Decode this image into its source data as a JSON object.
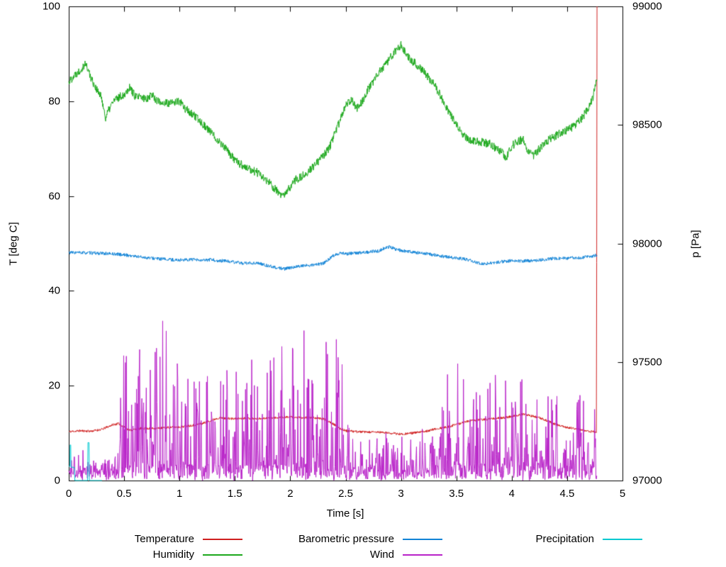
{
  "chart_data": {
    "type": "line",
    "title": "",
    "xlabel": "Time [s]",
    "ylabel_left": "T [deg C]",
    "ylabel_right": "p [Pa]",
    "xlim": [
      0,
      5
    ],
    "ylim_left": [
      0,
      100
    ],
    "ylim_right": [
      97000,
      99000
    ],
    "grid": false,
    "legend_position": "bottom",
    "x_ticks": [
      0,
      0.5,
      1,
      1.5,
      2,
      2.5,
      3,
      3.5,
      4,
      4.5,
      5
    ],
    "y_ticks_left": [
      0,
      20,
      40,
      60,
      80,
      100
    ],
    "y_ticks_right": [
      97000,
      97500,
      98000,
      98500,
      99000
    ],
    "legend_order": [
      0,
      2,
      4,
      1,
      3,
      null
    ],
    "series": [
      {
        "name": "Temperature",
        "color": "#cf2020",
        "axis": "left",
        "mode": "noisy",
        "noise": 0.25,
        "seed": 11,
        "x": [
          0,
          0.1,
          0.2,
          0.3,
          0.4,
          0.45,
          0.5,
          0.55,
          0.65,
          0.8,
          0.9,
          1.0,
          1.1,
          1.2,
          1.3,
          1.35,
          1.5,
          1.6,
          1.7,
          1.8,
          1.9,
          2.0,
          2.1,
          2.2,
          2.3,
          2.35,
          2.45,
          2.5,
          2.6,
          2.7,
          2.8,
          2.9,
          3.0,
          3.1,
          3.2,
          3.3,
          3.4,
          3.5,
          3.6,
          3.7,
          3.8,
          3.9,
          4.0,
          4.1,
          4.15,
          4.25,
          4.3,
          4.4,
          4.5,
          4.6,
          4.7,
          4.76,
          4.765,
          4.77
        ],
        "y": [
          10.3,
          10.5,
          10.4,
          10.8,
          11.8,
          12.0,
          11.3,
          10.6,
          11.0,
          11.0,
          11.2,
          11.3,
          11.6,
          12.0,
          12.8,
          13.2,
          13.0,
          13.2,
          13.0,
          13.2,
          13.3,
          13.4,
          13.2,
          13.3,
          13.0,
          12.5,
          11.0,
          10.5,
          10.3,
          10.2,
          10.2,
          10.0,
          9.8,
          10.0,
          10.3,
          10.8,
          11.2,
          11.8,
          12.5,
          12.8,
          13.0,
          13.2,
          13.5,
          14.0,
          13.8,
          13.2,
          12.8,
          11.8,
          11.2,
          10.8,
          10.4,
          10.2,
          10.2,
          100
        ]
      },
      {
        "name": "Humidity",
        "color": "#1ca81c",
        "axis": "left",
        "mode": "noisy",
        "noise": 0.9,
        "seed": 22,
        "x": [
          0,
          0.05,
          0.1,
          0.15,
          0.2,
          0.25,
          0.3,
          0.33,
          0.4,
          0.5,
          0.55,
          0.6,
          0.7,
          0.75,
          0.8,
          0.9,
          1.0,
          1.05,
          1.1,
          1.2,
          1.3,
          1.4,
          1.5,
          1.6,
          1.7,
          1.8,
          1.9,
          1.95,
          2.0,
          2.05,
          2.1,
          2.2,
          2.3,
          2.35,
          2.4,
          2.45,
          2.5,
          2.55,
          2.6,
          2.65,
          2.7,
          2.75,
          2.8,
          2.85,
          2.9,
          2.95,
          3.0,
          3.05,
          3.1,
          3.15,
          3.2,
          3.25,
          3.3,
          3.35,
          3.4,
          3.45,
          3.5,
          3.55,
          3.6,
          3.7,
          3.8,
          3.9,
          3.95,
          4.0,
          4.05,
          4.1,
          4.15,
          4.2,
          4.25,
          4.3,
          4.35,
          4.45,
          4.55,
          4.6,
          4.65,
          4.7,
          4.73,
          4.77
        ],
        "y": [
          84,
          85.5,
          86.5,
          88,
          85,
          82.5,
          80.5,
          76.5,
          80,
          81.5,
          83,
          81,
          80.5,
          81.5,
          80,
          79.5,
          80,
          78.5,
          77.5,
          75.5,
          73,
          70.5,
          67.5,
          66,
          65,
          63,
          60.5,
          60,
          62,
          63.5,
          64,
          66,
          68.5,
          70,
          73,
          76,
          79,
          80.5,
          78.5,
          80,
          82.5,
          84,
          86,
          87.5,
          89,
          90.5,
          92,
          90,
          88.5,
          87.5,
          86.5,
          85,
          83.5,
          81.5,
          79,
          77,
          75,
          73,
          72,
          71.5,
          71,
          69.5,
          68,
          70.5,
          71.5,
          72,
          69.5,
          68.5,
          70,
          71.5,
          72,
          73.5,
          74.5,
          75.5,
          77,
          79,
          80.5,
          84.5
        ]
      },
      {
        "name": "Barometric pressure",
        "color": "#1183d6",
        "axis": "right",
        "mode": "noisy",
        "noise": 7,
        "seed": 33,
        "x": [
          0,
          0.2,
          0.4,
          0.5,
          0.6,
          0.7,
          0.8,
          0.9,
          1.0,
          1.1,
          1.2,
          1.3,
          1.35,
          1.4,
          1.5,
          1.6,
          1.7,
          1.8,
          1.9,
          1.95,
          2.0,
          2.1,
          2.2,
          2.3,
          2.4,
          2.45,
          2.5,
          2.6,
          2.7,
          2.8,
          2.85,
          2.9,
          2.95,
          3.0,
          3.1,
          3.2,
          3.3,
          3.4,
          3.5,
          3.6,
          3.7,
          3.75,
          3.8,
          3.9,
          4.0,
          4.1,
          4.2,
          4.3,
          4.4,
          4.5,
          4.6,
          4.7,
          4.77
        ],
        "y": [
          97962,
          97960,
          97956,
          97952,
          97946,
          97940,
          97936,
          97932,
          97930,
          97932,
          97928,
          97932,
          97924,
          97928,
          97920,
          97916,
          97918,
          97906,
          97896,
          97892,
          97898,
          97906,
          97908,
          97916,
          97952,
          97960,
          97956,
          97960,
          97964,
          97968,
          97980,
          97986,
          97976,
          97970,
          97964,
          97958,
          97952,
          97944,
          97938,
          97932,
          97918,
          97912,
          97918,
          97922,
          97928,
          97926,
          97928,
          97932,
          97938,
          97938,
          97940,
          97944,
          97950
        ]
      },
      {
        "name": "Wind",
        "color": "#b822c8",
        "axis": "left",
        "mode": "spiky",
        "seed": 44,
        "base_x": [
          0,
          0.45,
          0.5,
          2.5,
          2.55,
          3.35,
          3.45,
          4.77
        ],
        "base_y": [
          2.5,
          2.5,
          3.5,
          3.5,
          2.5,
          2.5,
          3.5,
          3.5
        ],
        "amp_x": [
          0,
          0.4,
          0.5,
          0.75,
          0.9,
          1.0,
          1.2,
          1.4,
          1.6,
          1.9,
          2.05,
          2.2,
          2.45,
          2.55,
          2.9,
          3.3,
          3.42,
          3.55,
          3.7,
          3.9,
          4.1,
          4.3,
          4.5,
          4.7,
          4.77
        ],
        "amp_y": [
          4,
          5,
          24,
          28,
          34,
          26,
          20,
          24,
          26,
          30,
          30,
          28,
          28,
          9,
          10,
          10,
          25,
          24,
          20,
          21,
          22,
          19,
          18,
          15,
          14
        ]
      },
      {
        "name": "Precipitation",
        "color": "#00c8d0",
        "axis": "left",
        "mode": "points",
        "points": [
          [
            0,
            3
          ],
          [
            0.01,
            3
          ],
          [
            0.012,
            7.5
          ],
          [
            0.018,
            7.5
          ],
          [
            0.02,
            2.8
          ],
          [
            0.05,
            2.8
          ],
          [
            0.055,
            0
          ],
          [
            0.17,
            0
          ],
          [
            0.173,
            8
          ],
          [
            0.183,
            8
          ],
          [
            0.186,
            0
          ],
          [
            0.3,
            0
          ]
        ]
      }
    ]
  }
}
